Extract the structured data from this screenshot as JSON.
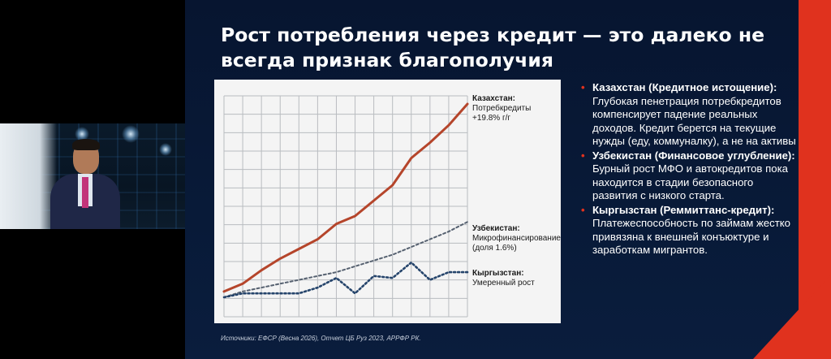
{
  "slide": {
    "title": "Рост потребления через кредит — это далеко не всегда признак благополучия",
    "source": "Источники: ЕФСР (Весна 2026), Отчет ЦБ Руз 2023, АРРФР РК.",
    "bullets": [
      {
        "marker": "•",
        "head": "Казахстан (Кредитное истощение):",
        "text": " Глубокая пенетрация потребкредитов компенсирует падение реальных доходов. Кредит берется на текущие нужды (еду, коммуналку), а не на активы"
      },
      {
        "marker": "•",
        "head": "Узбекистан (Финансовое углубление):",
        "text": " Бурный рост МФО и автокредитов пока находится в стадии безопасного развития с низкого старта."
      },
      {
        "marker": "•",
        "head": "Кыргызстан (Реммиттанс-кредит):",
        "text": " Платежеспособность по займам жестко привязяна к внешней конъюктуре и заработкам мигрантов."
      }
    ]
  },
  "colors": {
    "background": "#071530",
    "accent": "#e0321e",
    "kz_line": "#b5452b",
    "uz_line": "#566170",
    "kg_line": "#25446b"
  },
  "chart_data": {
    "type": "line",
    "title": "",
    "xlabel": "",
    "ylabel": "",
    "grid": true,
    "x": [
      0,
      1,
      2,
      3,
      4,
      5,
      6,
      7,
      8,
      9,
      10,
      11,
      12,
      13
    ],
    "ylim": [
      0,
      100
    ],
    "series": [
      {
        "id": "kz",
        "label_title": "Казахстан:",
        "label_lines": [
          "Потребкредиты",
          "+19.8% г/г"
        ],
        "style": "solid",
        "color": "#b5452b",
        "values": [
          3,
          7,
          14,
          20,
          25,
          30,
          38,
          42,
          50,
          58,
          72,
          80,
          89,
          100
        ]
      },
      {
        "id": "uz",
        "label_title": "Узбекистан:",
        "label_lines": [
          "Микрофинансирование",
          "(доля 1.6%)"
        ],
        "style": "dashed",
        "color": "#566170",
        "values": [
          0,
          3,
          5,
          7,
          9,
          11,
          13,
          16,
          19,
          22,
          26,
          30,
          34,
          39
        ]
      },
      {
        "id": "kg",
        "label_title": "Кыргызстан:",
        "label_lines": [
          "Умеренный рост"
        ],
        "style": "dotted",
        "color": "#25446b",
        "values": [
          0,
          2,
          2,
          2,
          2,
          5,
          10,
          2,
          11,
          10,
          18,
          9,
          13,
          13
        ]
      }
    ]
  }
}
